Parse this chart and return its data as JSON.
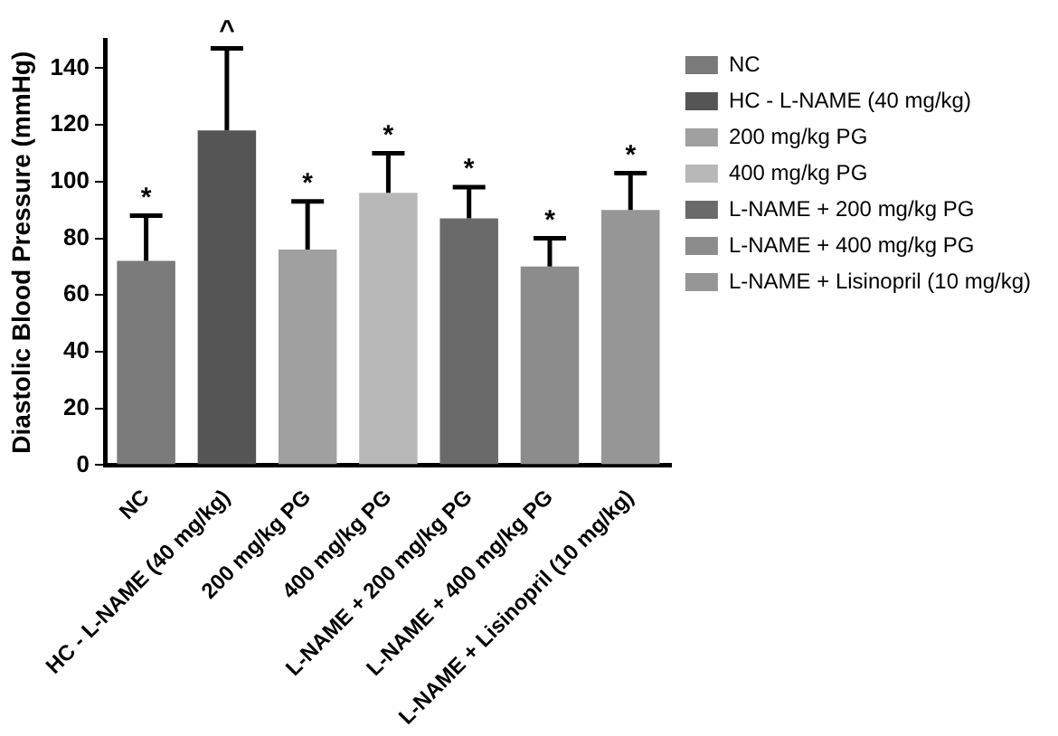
{
  "chart_data": {
    "type": "bar",
    "ylabel": "Diastolic Blood Pressure (mmHg)",
    "categories": [
      "NC",
      "HC - L-NAME (40 mg/kg)",
      "200 mg/kg PG",
      "400 mg/kg PG",
      "L-NAME + 200 mg/kg PG",
      "L-NAME + 400 mg/kg PG",
      "L-NAME + Lisinopril (10 mg/kg)"
    ],
    "series": [
      {
        "name": "NC",
        "color": "#7a7a7a",
        "values": [
          72,
          null,
          null,
          null,
          null,
          null,
          null
        ],
        "errors": [
          16,
          null,
          null,
          null,
          null,
          null,
          null
        ]
      },
      {
        "name": "HC - L-NAME (40 mg/kg)",
        "color": "#555555",
        "values": [
          null,
          118,
          null,
          null,
          null,
          null,
          null
        ],
        "errors": [
          null,
          29,
          null,
          null,
          null,
          null,
          null
        ]
      },
      {
        "name": "200 mg/kg PG",
        "color": "#a0a0a0",
        "values": [
          null,
          null,
          76,
          null,
          null,
          null,
          null
        ],
        "errors": [
          null,
          null,
          17,
          null,
          null,
          null,
          null
        ]
      },
      {
        "name": "400 mg/kg PG",
        "color": "#b8b8b8",
        "values": [
          null,
          null,
          null,
          96,
          null,
          null,
          null
        ],
        "errors": [
          null,
          null,
          null,
          14,
          null,
          null,
          null
        ]
      },
      {
        "name": "L-NAME + 200 mg/kg PG",
        "color": "#6a6a6a",
        "values": [
          null,
          null,
          null,
          null,
          87,
          null,
          null
        ],
        "errors": [
          null,
          null,
          null,
          null,
          11,
          null,
          null
        ]
      },
      {
        "name": "L-NAME + 400 mg/kg PG",
        "color": "#8c8c8c",
        "values": [
          null,
          null,
          null,
          null,
          null,
          70,
          null
        ],
        "errors": [
          null,
          null,
          null,
          null,
          null,
          10,
          null
        ]
      },
      {
        "name": "L-NAME + Lisinopril (10 mg/kg)",
        "color": "#969696",
        "values": [
          null,
          null,
          null,
          null,
          null,
          null,
          90
        ],
        "errors": [
          null,
          null,
          null,
          null,
          null,
          null,
          13
        ]
      }
    ],
    "ylim": [
      0,
      150
    ],
    "yticks": [
      0,
      20,
      40,
      60,
      80,
      100,
      120,
      140
    ],
    "grid": false,
    "legend": "right",
    "annotations": [
      "*",
      "^",
      "*",
      "*",
      "*",
      "*",
      "*"
    ]
  }
}
